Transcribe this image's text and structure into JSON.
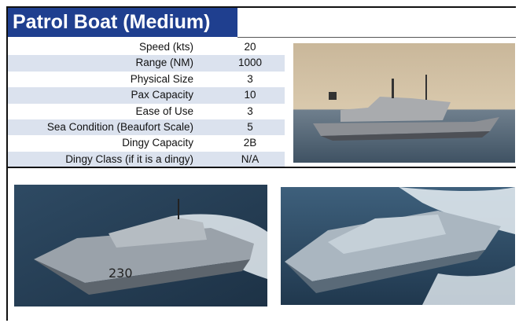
{
  "header": {
    "title": "Patrol Boat (Medium)"
  },
  "table": {
    "rows": [
      [
        "Speed (kts)",
        20
      ],
      [
        "Range (NM)",
        1000
      ],
      [
        "Physical Size",
        3
      ],
      [
        "Pax Capacity",
        10
      ],
      [
        "Ease of Use",
        3
      ],
      [
        "Sea Condition (Beaufort Scale)",
        5
      ],
      [
        "Dingy Capacity",
        "2B"
      ],
      [
        "Dingy Class (if it is a dingy)",
        "N/A"
      ]
    ]
  }
}
